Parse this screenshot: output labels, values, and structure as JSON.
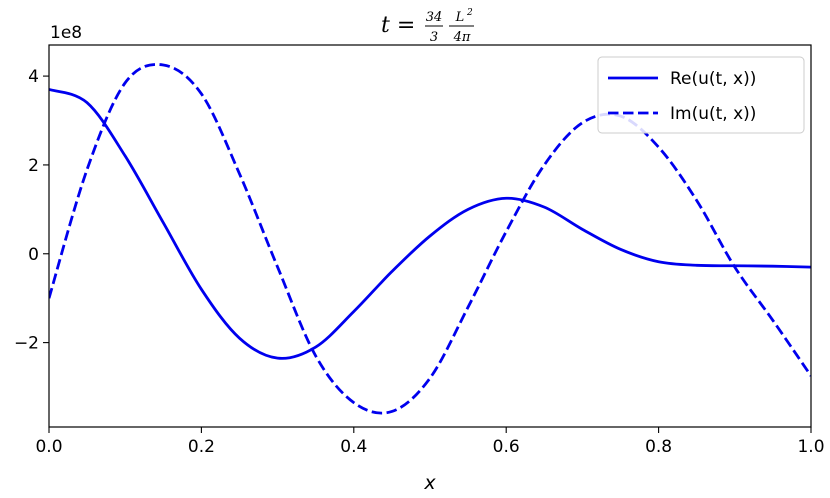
{
  "chart_data": {
    "type": "line",
    "title": {
      "prefix": "t =",
      "frac1_num": "34",
      "frac1_den": "3",
      "frac2_num": "L",
      "frac2_sup": "2",
      "frac2_den": "4π"
    },
    "xlabel": "x",
    "ylabel": "",
    "offset_label": "1e8",
    "xlim": [
      0,
      1
    ],
    "ylim": [
      -3.9,
      4.7
    ],
    "xticks": [
      0.0,
      0.2,
      0.4,
      0.6,
      0.8,
      1.0
    ],
    "xtick_labels": [
      "0.0",
      "0.2",
      "0.4",
      "0.6",
      "0.8",
      "1.0"
    ],
    "yticks": [
      -2,
      0,
      2,
      4
    ],
    "ytick_labels": [
      "−2",
      "0",
      "2",
      "4"
    ],
    "grid": false,
    "legend_position": "top-right",
    "x": [
      0.0,
      0.05,
      0.1,
      0.15,
      0.2,
      0.25,
      0.3,
      0.35,
      0.4,
      0.45,
      0.5,
      0.55,
      0.6,
      0.65,
      0.7,
      0.75,
      0.8,
      0.85,
      0.9,
      0.95,
      1.0
    ],
    "series": [
      {
        "name": "Re(u(t, x))",
        "style": "solid",
        "color": "#0000ee",
        "values": [
          3.7,
          3.4,
          2.2,
          0.7,
          -0.8,
          -1.9,
          -2.35,
          -2.1,
          -1.3,
          -0.4,
          0.4,
          1.0,
          1.25,
          1.05,
          0.55,
          0.1,
          -0.18,
          -0.26,
          -0.27,
          -0.28,
          -0.3
        ]
      },
      {
        "name": "Im(u(t, x))",
        "style": "dashed",
        "color": "#0000ee",
        "values": [
          -1.0,
          1.9,
          3.85,
          4.25,
          3.6,
          1.8,
          -0.3,
          -2.3,
          -3.35,
          -3.55,
          -2.8,
          -1.2,
          0.5,
          2.0,
          2.95,
          3.1,
          2.4,
          1.2,
          -0.3,
          -1.5,
          -2.75
        ]
      }
    ]
  }
}
